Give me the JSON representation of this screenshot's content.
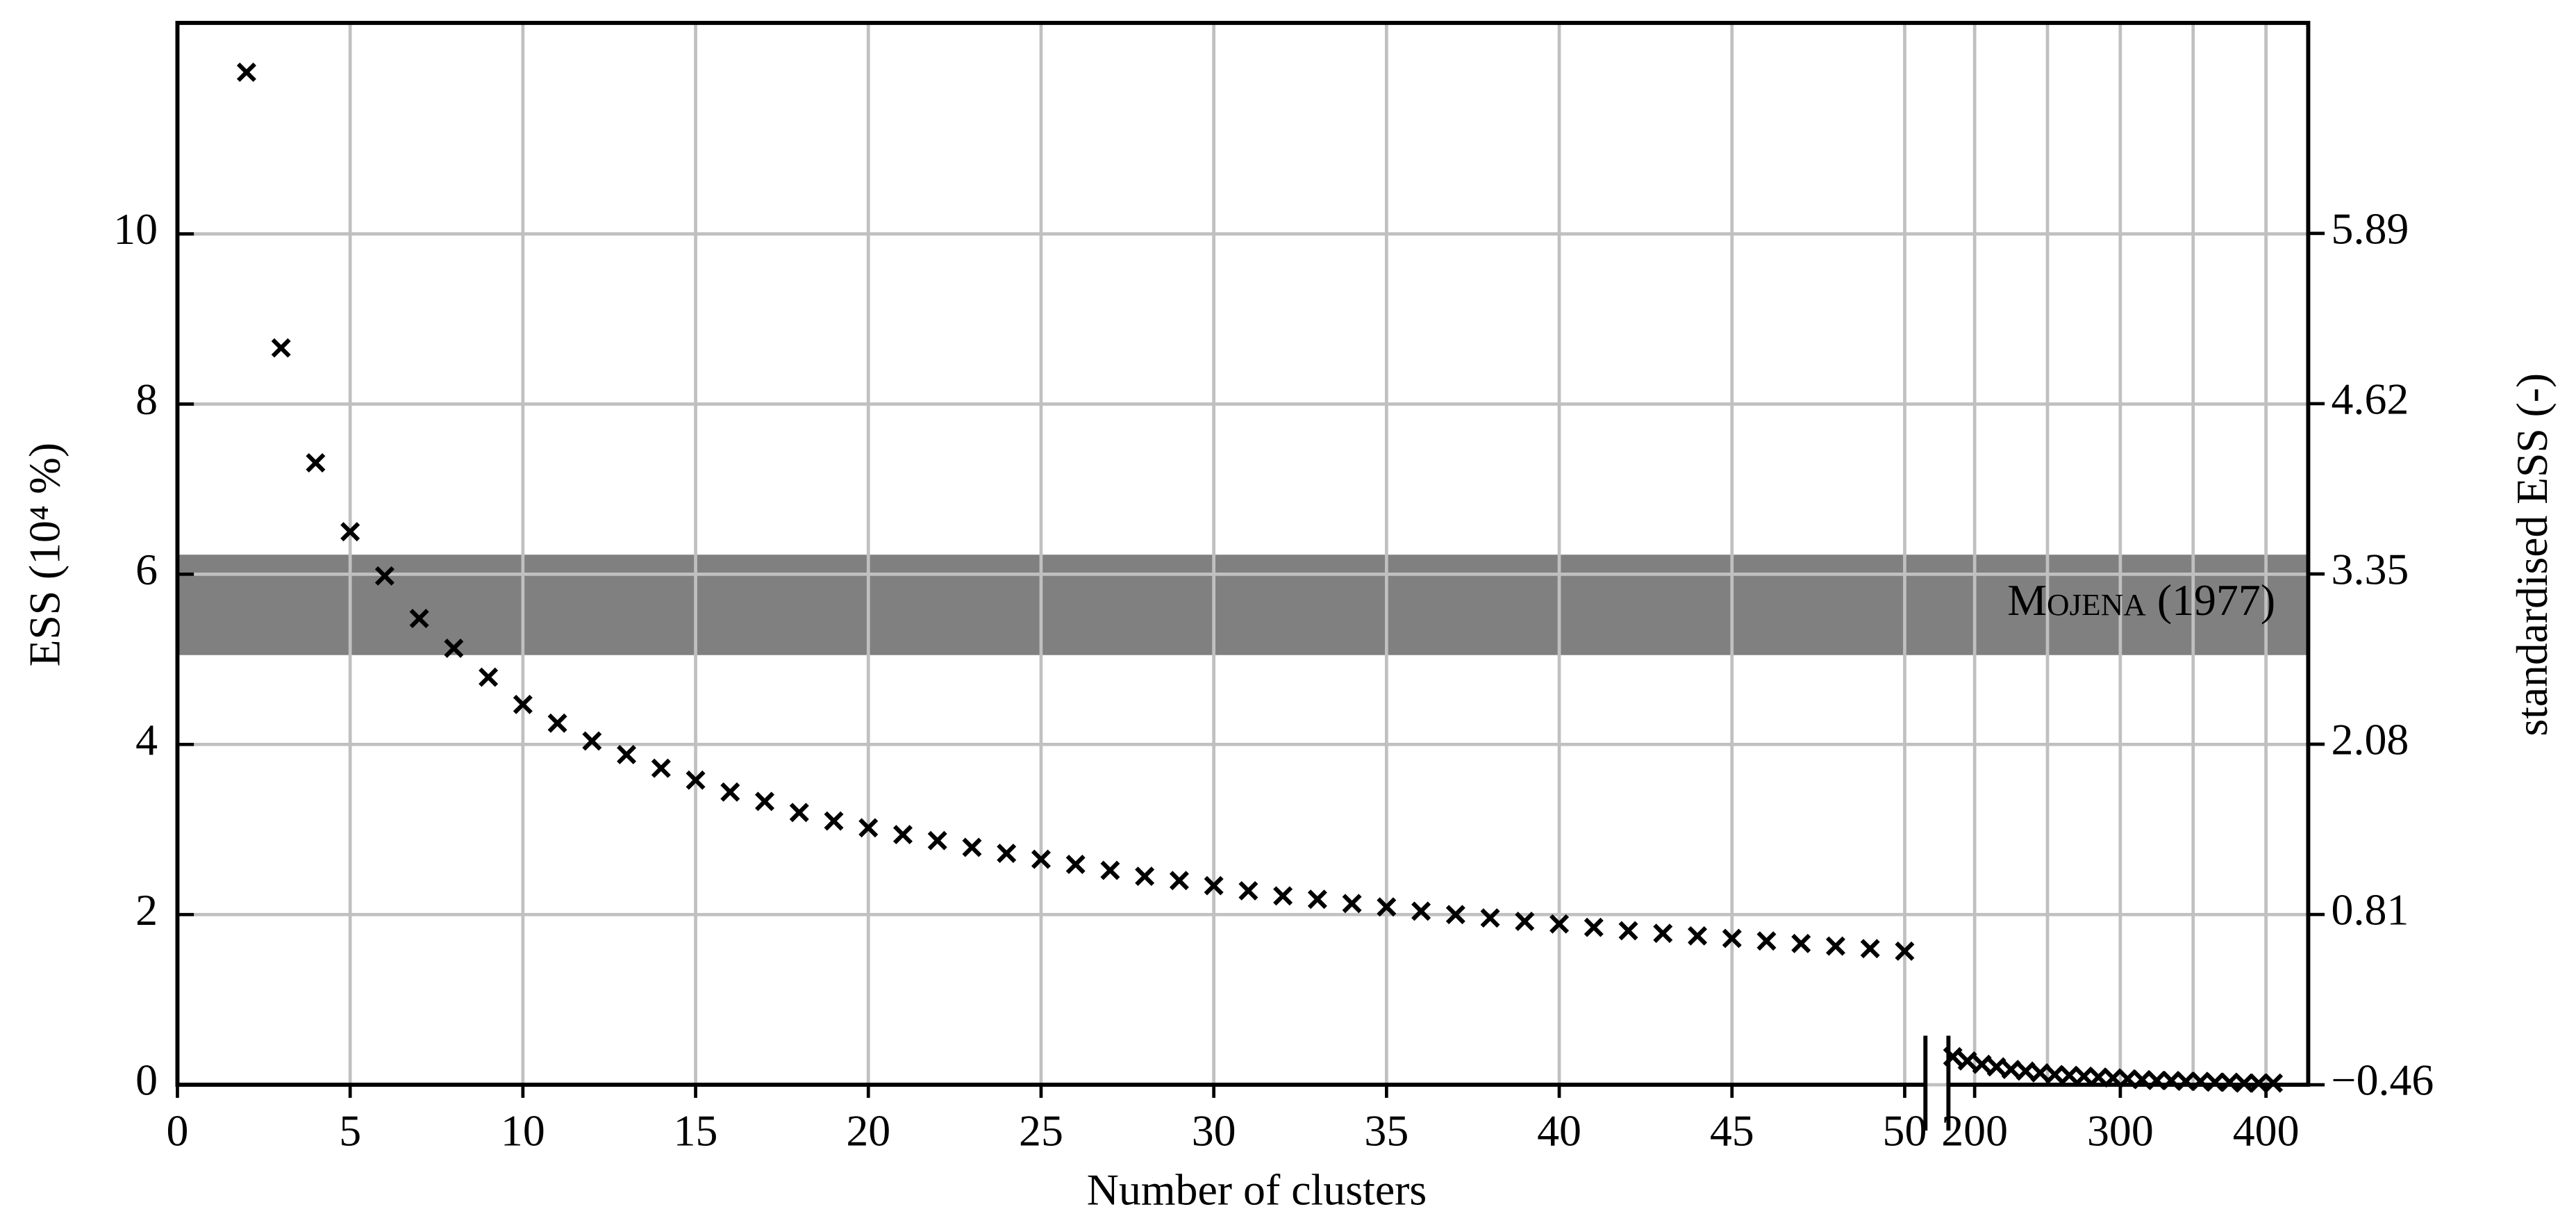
{
  "chart_data": {
    "type": "scatter",
    "xlabel": "Number of clusters",
    "ylabel": "ESS (10⁴ %)",
    "y2label": "standardised ESS (-)",
    "ylim": [
      0,
      12.48
    ],
    "yticks": [
      0,
      2,
      4,
      6,
      8,
      10
    ],
    "y2lim": [
      -0.46,
      7.46
    ],
    "y2ticks": [
      {
        "value": -0.46,
        "label": "−0.46"
      },
      0.81,
      2.08,
      3.35,
      4.62,
      5.89
    ],
    "grid": true,
    "color": "#000000",
    "band": {
      "ymin": 5.05,
      "ymax": 6.23,
      "color": "#808080",
      "label": "Mojena (1977)"
    },
    "x_segments": [
      {
        "xlim": [
          0,
          50.6
        ],
        "xticks": [
          0,
          5,
          10,
          15,
          20,
          25,
          30,
          35,
          40,
          45,
          50
        ],
        "x": [
          2,
          3,
          4,
          5,
          6,
          7,
          8,
          9,
          10,
          11,
          12,
          13,
          14,
          15,
          16,
          17,
          18,
          19,
          20,
          21,
          22,
          23,
          24,
          25,
          26,
          27,
          28,
          29,
          30,
          31,
          32,
          33,
          34,
          35,
          36,
          37,
          38,
          39,
          40,
          41,
          42,
          43,
          44,
          45,
          46,
          47,
          48,
          49,
          50
        ],
        "values": [
          11.9,
          8.66,
          7.31,
          6.5,
          5.98,
          5.48,
          5.13,
          4.79,
          4.47,
          4.25,
          4.04,
          3.88,
          3.72,
          3.58,
          3.44,
          3.33,
          3.2,
          3.1,
          3.02,
          2.94,
          2.87,
          2.79,
          2.72,
          2.65,
          2.59,
          2.52,
          2.45,
          2.4,
          2.34,
          2.28,
          2.22,
          2.18,
          2.13,
          2.09,
          2.04,
          2.0,
          1.96,
          1.92,
          1.89,
          1.85,
          1.81,
          1.78,
          1.75,
          1.72,
          1.69,
          1.66,
          1.63,
          1.6,
          1.57
        ]
      },
      {
        "xlim": [
          182,
          429
        ],
        "xticks": [
          200,
          300,
          400
        ],
        "minor_xticks": [
          250,
          350
        ],
        "x": [
          185,
          195,
          205,
          215,
          225,
          235,
          245,
          255,
          265,
          275,
          285,
          295,
          305,
          315,
          325,
          335,
          345,
          355,
          365,
          375,
          385,
          395,
          405
        ],
        "values": [
          0.33,
          0.28,
          0.24,
          0.21,
          0.18,
          0.16,
          0.14,
          0.12,
          0.11,
          0.1,
          0.09,
          0.08,
          0.07,
          0.06,
          0.05,
          0.05,
          0.04,
          0.04,
          0.03,
          0.03,
          0.02,
          0.02,
          0.02
        ]
      }
    ]
  }
}
